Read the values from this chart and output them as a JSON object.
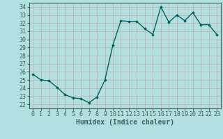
{
  "x": [
    0,
    1,
    2,
    3,
    4,
    5,
    6,
    7,
    8,
    9,
    10,
    11,
    12,
    13,
    14,
    15,
    16,
    17,
    18,
    19,
    20,
    21,
    22,
    23
  ],
  "y": [
    25.7,
    25.0,
    24.9,
    24.1,
    23.2,
    22.8,
    22.7,
    22.2,
    22.9,
    25.0,
    29.3,
    32.3,
    32.2,
    32.2,
    31.3,
    30.6,
    34.0,
    32.1,
    33.0,
    32.3,
    33.3,
    31.8,
    31.8,
    30.6
  ],
  "line_color": "#006060",
  "marker": "D",
  "marker_size": 1.8,
  "bg_color": "#b2e0e0",
  "grid_color": "#c8a8a8",
  "xlabel": "Humidex (Indice chaleur)",
  "ylim": [
    21.5,
    34.5
  ],
  "xlim": [
    -0.5,
    23.5
  ],
  "yticks": [
    22,
    23,
    24,
    25,
    26,
    27,
    28,
    29,
    30,
    31,
    32,
    33,
    34
  ],
  "xticks": [
    0,
    1,
    2,
    3,
    4,
    5,
    6,
    7,
    8,
    9,
    10,
    11,
    12,
    13,
    14,
    15,
    16,
    17,
    18,
    19,
    20,
    21,
    22,
    23
  ],
  "xlabel_fontsize": 7,
  "tick_fontsize": 6,
  "line_width": 1.0,
  "spine_color": "#406060"
}
